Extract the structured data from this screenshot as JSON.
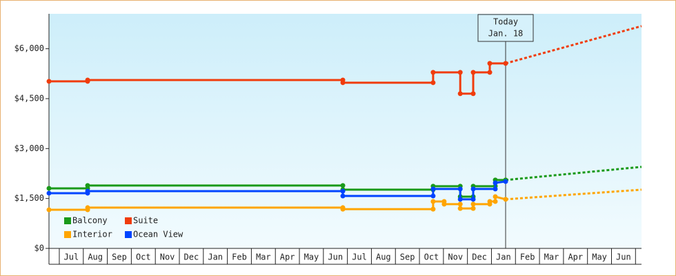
{
  "chart_data": {
    "type": "line",
    "xlim": [
      -0.43,
      24.25
    ],
    "ylim": [
      0,
      7050
    ],
    "yticks": [
      {
        "value": 0,
        "label": "$0"
      },
      {
        "value": 1500,
        "label": "$1,500"
      },
      {
        "value": 3000,
        "label": "$3,000"
      },
      {
        "value": 4500,
        "label": "$4,500"
      },
      {
        "value": 6000,
        "label": "$6,000"
      }
    ],
    "xticks": [
      {
        "value": 0.5,
        "label": "Jul"
      },
      {
        "value": 1.5,
        "label": "Aug"
      },
      {
        "value": 2.5,
        "label": "Sep"
      },
      {
        "value": 3.5,
        "label": "Oct"
      },
      {
        "value": 4.5,
        "label": "Nov"
      },
      {
        "value": 5.5,
        "label": "Dec"
      },
      {
        "value": 6.5,
        "label": "Jan"
      },
      {
        "value": 7.5,
        "label": "Feb"
      },
      {
        "value": 8.5,
        "label": "Mar"
      },
      {
        "value": 9.5,
        "label": "Apr"
      },
      {
        "value": 10.5,
        "label": "May"
      },
      {
        "value": 11.5,
        "label": "Jun"
      },
      {
        "value": 12.5,
        "label": "Jul"
      },
      {
        "value": 13.5,
        "label": "Aug"
      },
      {
        "value": 14.5,
        "label": "Sep"
      },
      {
        "value": 15.5,
        "label": "Oct"
      },
      {
        "value": 16.5,
        "label": "Nov"
      },
      {
        "value": 17.5,
        "label": "Dec"
      },
      {
        "value": 18.5,
        "label": "Jan"
      },
      {
        "value": 19.5,
        "label": "Feb"
      },
      {
        "value": 20.5,
        "label": "Mar"
      },
      {
        "value": 21.5,
        "label": "Apr"
      },
      {
        "value": 22.5,
        "label": "May"
      },
      {
        "value": 23.5,
        "label": "Jun"
      }
    ],
    "annotation": {
      "lines": [
        "Today",
        "Jan. 18"
      ],
      "x": 18.59
    },
    "series": [
      {
        "name": "Balcony",
        "color": "#1a9a1a",
        "x": [
          -0.43,
          1.18,
          1.18,
          11.81,
          11.81,
          15.57,
          15.57,
          16.7,
          16.7,
          17.24,
          17.24,
          18.16,
          18.16,
          18.59
        ],
        "values": [
          1805,
          1805,
          1890,
          1890,
          1765,
          1765,
          1870,
          1870,
          1555,
          1555,
          1870,
          1870,
          2055,
          2055
        ],
        "forecast": {
          "x": [
            18.59,
            24.25
          ],
          "values": [
            2055,
            2450
          ]
        }
      },
      {
        "name": "Suite",
        "color": "#f03c0c",
        "x": [
          -0.43,
          1.18,
          1.18,
          11.81,
          11.81,
          15.57,
          15.57,
          16.7,
          16.7,
          17.24,
          17.24,
          17.93,
          17.93,
          18.59
        ],
        "values": [
          5020,
          5020,
          5060,
          5060,
          4980,
          4980,
          5290,
          5290,
          4650,
          4650,
          5290,
          5290,
          5560,
          5560
        ],
        "forecast": {
          "x": [
            18.59,
            24.25
          ],
          "values": [
            5560,
            6680
          ]
        }
      },
      {
        "name": "Interior",
        "color": "#ffa500",
        "x": [
          -0.43,
          1.18,
          1.18,
          11.81,
          11.81,
          15.57,
          15.57,
          16.03,
          16.03,
          16.7,
          16.7,
          17.24,
          17.24,
          17.93,
          17.93,
          18.16,
          18.16,
          18.59
        ],
        "values": [
          1160,
          1160,
          1225,
          1225,
          1180,
          1180,
          1410,
          1410,
          1330,
          1330,
          1200,
          1200,
          1330,
          1330,
          1410,
          1410,
          1555,
          1475
        ],
        "forecast": {
          "x": [
            18.59,
            24.25
          ],
          "values": [
            1475,
            1765
          ]
        }
      },
      {
        "name": "Ocean View",
        "color": "#0044ff",
        "x": [
          -0.43,
          1.18,
          1.18,
          11.81,
          11.81,
          15.57,
          15.57,
          16.7,
          16.7,
          17.24,
          17.24,
          18.16,
          18.16,
          18.59
        ],
        "values": [
          1660,
          1660,
          1720,
          1720,
          1575,
          1575,
          1785,
          1785,
          1475,
          1475,
          1785,
          1785,
          1970,
          2010
        ]
      }
    ]
  }
}
